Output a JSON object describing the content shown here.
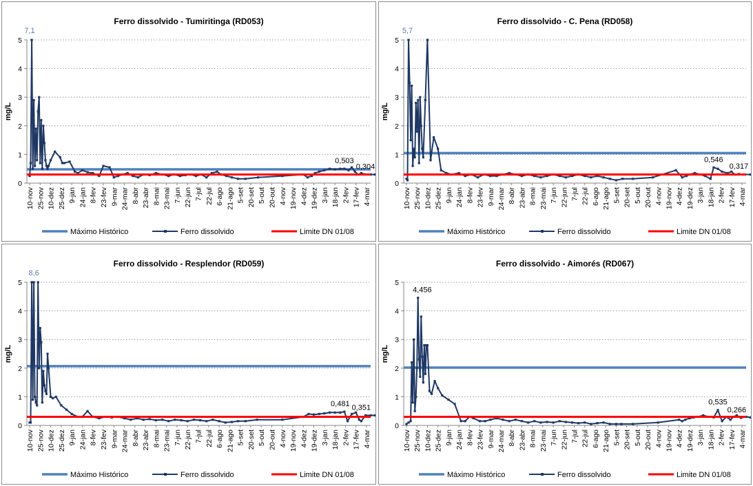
{
  "colors": {
    "maximo": "#4f81bd",
    "ferro": "#1f3864",
    "limite": "#ff0000",
    "grid": "#7f7f7f",
    "max_label": "#5a7aa8"
  },
  "chart_data": [
    {
      "type": "line",
      "title": "Ferro dissolvido - Tumiritinga (RD053)",
      "ylabel": "mg/L",
      "xlabel": "",
      "ylim": [
        0,
        5
      ],
      "yticks": [
        "0",
        "1",
        "2",
        "3",
        "4",
        "5"
      ],
      "grid": true,
      "legend_position": "bottom",
      "x_tick_labels": [
        "10-nov",
        "25-nov",
        "10-dez",
        "25-dez",
        "9-jan",
        "24-jan",
        "8-fev",
        "23-fev",
        "9-mar",
        "24-mar",
        "8-abr",
        "23-abr",
        "8-mai",
        "23-mai",
        "7-jun",
        "22-jun",
        "7-jul",
        "22-jul",
        "6-ago",
        "21-ago",
        "5-set",
        "20-set",
        "5-out",
        "20-out",
        "4-nov",
        "19-nov",
        "4-dez",
        "19-dez",
        "3-jan",
        "18-jan",
        "2-fev",
        "17-fev",
        "4-mar"
      ],
      "legend": [
        "Máximo Histórico",
        "Ferro dissolvido",
        "Limite DN 01/08"
      ],
      "maximo_historico": 0.48,
      "limite": 0.3,
      "labels": [
        {
          "x": 0.0,
          "y": 5,
          "text": "7,1",
          "kind": "max"
        },
        {
          "x": 29.9,
          "y": 0.503,
          "text": "0,503",
          "kind": "data"
        },
        {
          "x": 31.9,
          "y": 0.304,
          "text": "0,304",
          "kind": "data"
        }
      ],
      "series": [
        {
          "name": "Ferro dissolvido",
          "x": [
            0,
            0.1,
            0.2,
            0.3,
            0.4,
            0.5,
            0.6,
            0.7,
            0.8,
            0.9,
            1.0,
            1.1,
            1.2,
            1.3,
            1.4,
            1.5,
            1.6,
            1.7,
            1.8,
            2.0,
            2.4,
            2.9,
            3.1,
            3.3,
            3.8,
            4.3,
            4.6,
            5.0,
            5.5,
            6.0,
            6.6,
            7.0,
            7.6,
            8.0,
            8.4,
            8.8,
            9.3,
            9.8,
            10.3,
            10.8,
            11.4,
            12.0,
            12.6,
            13.2,
            13.7,
            14.3,
            14.8,
            15.3,
            15.8,
            16.3,
            16.8,
            17.3,
            17.8,
            18.2,
            18.7,
            19.2,
            19.8,
            20.5,
            21.7,
            24.0,
            26.0,
            26.4,
            26.8,
            27.1,
            27.5,
            28.0,
            28.5,
            29.0,
            29.5,
            29.9,
            30.3,
            30.6,
            30.9,
            31.2,
            31.5,
            31.9,
            32.4,
            32.8
          ],
          "values": [
            0.25,
            0.7,
            5.0,
            0.5,
            2.9,
            0.6,
            1.9,
            0.8,
            2.5,
            3.0,
            0.7,
            2.2,
            0.5,
            2.0,
            1.4,
            0.8,
            0.6,
            0.5,
            0.6,
            0.8,
            1.1,
            0.9,
            0.7,
            0.7,
            0.75,
            0.4,
            0.35,
            0.45,
            0.38,
            0.35,
            0.25,
            0.6,
            0.55,
            0.2,
            0.25,
            0.3,
            0.35,
            0.25,
            0.2,
            0.3,
            0.28,
            0.35,
            0.3,
            0.25,
            0.3,
            0.25,
            0.28,
            0.3,
            0.25,
            0.3,
            0.2,
            0.35,
            0.4,
            0.3,
            0.25,
            0.2,
            0.15,
            0.15,
            0.2,
            0.25,
            0.3,
            0.2,
            0.25,
            0.35,
            0.4,
            0.45,
            0.5,
            0.48,
            0.5,
            0.503,
            0.45,
            0.55,
            0.4,
            0.3,
            0.35,
            0.304,
            0.3,
            0.3
          ]
        }
      ]
    },
    {
      "type": "line",
      "title": "Ferro dissolvido - C. Pena (RD058)",
      "ylabel": "mg/L",
      "xlabel": "",
      "ylim": [
        0,
        5
      ],
      "yticks": [
        "0",
        "1",
        "2",
        "3",
        "4",
        "5"
      ],
      "grid": true,
      "legend_position": "bottom",
      "x_tick_labels": [
        "10-nov",
        "25-nov",
        "10-dez",
        "25-dez",
        "9-jan",
        "24-jan",
        "8-fev",
        "23-fev",
        "9-mar",
        "24-mar",
        "8-abr",
        "23-abr",
        "8-mai",
        "23-mai",
        "7-jun",
        "22-jun",
        "7-jul",
        "22-jul",
        "6-ago",
        "21-ago",
        "5-set",
        "20-set",
        "5-out",
        "20-out",
        "4-nov",
        "19-nov",
        "4-dez",
        "19-dez",
        "3-jan",
        "18-jan",
        "2-fev",
        "17-fev",
        "4-mar"
      ],
      "legend": [
        "Máximo Histórico",
        "Ferro dissolvido",
        "Limite DN 01/08"
      ],
      "maximo_historico": 1.05,
      "limite": 0.3,
      "labels": [
        {
          "x": 0.1,
          "y": 5,
          "text": "5,7",
          "kind": "max"
        },
        {
          "x": 29.3,
          "y": 0.546,
          "text": "0,546",
          "kind": "data"
        },
        {
          "x": 31.7,
          "y": 0.317,
          "text": "0,317",
          "kind": "data"
        }
      ],
      "series": [
        {
          "name": "Ferro dissolvido",
          "x": [
            0,
            0.1,
            0.2,
            0.3,
            0.4,
            0.5,
            0.6,
            0.7,
            0.8,
            0.9,
            1.0,
            1.1,
            1.2,
            1.3,
            1.4,
            1.5,
            1.6,
            1.8,
            2.0,
            2.3,
            2.6,
            3.0,
            3.3,
            3.8,
            4.3,
            5.0,
            5.6,
            6.2,
            6.8,
            7.4,
            8.0,
            8.6,
            9.2,
            9.8,
            10.4,
            11.0,
            11.6,
            12.2,
            12.8,
            13.4,
            14.0,
            14.6,
            15.2,
            15.8,
            16.4,
            17.0,
            17.6,
            18.2,
            18.8,
            19.4,
            20.0,
            20.6,
            21.6,
            23.5,
            25.7,
            26.3,
            26.7,
            27.0,
            27.5,
            28.0,
            28.5,
            29.0,
            29.3,
            29.7,
            30.1,
            30.6,
            31.0,
            31.3,
            31.7,
            32.2,
            32.8
          ],
          "values": [
            0.15,
            0.1,
            5.0,
            3.5,
            1.5,
            3.4,
            0.6,
            1.2,
            0.9,
            2.8,
            1.8,
            2.9,
            0.7,
            3.0,
            2.0,
            1.2,
            0.9,
            2.9,
            5.0,
            0.8,
            1.6,
            1.2,
            0.45,
            0.35,
            0.3,
            0.35,
            0.25,
            0.3,
            0.2,
            0.3,
            0.25,
            0.25,
            0.3,
            0.35,
            0.3,
            0.25,
            0.3,
            0.25,
            0.2,
            0.25,
            0.3,
            0.25,
            0.2,
            0.25,
            0.3,
            0.25,
            0.2,
            0.25,
            0.2,
            0.15,
            0.1,
            0.15,
            0.15,
            0.2,
            0.45,
            0.2,
            0.25,
            0.3,
            0.35,
            0.3,
            0.25,
            0.15,
            0.546,
            0.5,
            0.4,
            0.35,
            0.4,
            0.3,
            0.317,
            0.3,
            0.3
          ]
        }
      ]
    },
    {
      "type": "line",
      "title": "Ferro dissolvido - Resplendor (RD059)",
      "ylabel": "mg/L",
      "xlabel": "",
      "ylim": [
        0,
        5
      ],
      "yticks": [
        "0",
        "1",
        "2",
        "3",
        "4",
        "5"
      ],
      "grid": true,
      "legend_position": "bottom",
      "x_tick_labels": [
        "10-nov",
        "25-nov",
        "10-dez",
        "25-dez",
        "9-jan",
        "24-jan",
        "8-fev",
        "23-fev",
        "9-mar",
        "24-mar",
        "8-abr",
        "23-abr",
        "8-mai",
        "23-mai",
        "7-jun",
        "22-jun",
        "7-jul",
        "22-jul",
        "6-ago",
        "21-ago",
        "5-set",
        "20-set",
        "5-out",
        "20-out",
        "4-nov",
        "19-nov",
        "4-dez",
        "19-dez",
        "3-jan",
        "18-jan",
        "2-fev",
        "17-fev",
        "4-mar"
      ],
      "legend": [
        "Máximo Histórico",
        "Ferro dissolvido",
        "Limite DN 01/08"
      ],
      "maximo_historico": 2.07,
      "limite": 0.3,
      "labels": [
        {
          "x": 0.4,
          "y": 5,
          "text": "8,6",
          "kind": "max"
        },
        {
          "x": 29.5,
          "y": 0.481,
          "text": "0,481",
          "kind": "data"
        },
        {
          "x": 31.5,
          "y": 0.351,
          "text": "0,351",
          "kind": "data"
        }
      ],
      "series": [
        {
          "name": "Ferro dissolvido",
          "x": [
            0,
            0.1,
            0.2,
            0.3,
            0.4,
            0.5,
            0.6,
            0.7,
            0.8,
            0.9,
            1.0,
            1.1,
            1.2,
            1.3,
            1.4,
            1.5,
            1.6,
            1.7,
            1.8,
            2.0,
            2.2,
            2.5,
            3.0,
            3.5,
            4.0,
            4.6,
            5.0,
            5.5,
            6.0,
            6.6,
            7.2,
            7.8,
            8.4,
            9.0,
            9.6,
            10.2,
            10.8,
            11.4,
            12.0,
            12.6,
            13.2,
            13.8,
            14.4,
            15.0,
            15.6,
            16.2,
            16.8,
            17.4,
            18.0,
            18.6,
            19.2,
            19.8,
            20.5,
            21.6,
            24.0,
            26.0,
            26.5,
            27.0,
            27.5,
            28.0,
            28.5,
            29.0,
            29.5,
            29.9,
            30.2,
            30.6,
            31.0,
            31.3,
            31.5,
            31.9,
            32.4,
            32.8
          ],
          "values": [
            0.1,
            0.1,
            5.0,
            0.9,
            5.0,
            1.0,
            0.8,
            0.7,
            5.0,
            2.0,
            3.4,
            2.9,
            0.8,
            1.9,
            1.4,
            1.2,
            1.1,
            2.5,
            2.0,
            1.0,
            0.95,
            1.0,
            0.7,
            0.55,
            0.4,
            0.3,
            0.3,
            0.5,
            0.3,
            0.25,
            0.3,
            0.28,
            0.3,
            0.25,
            0.2,
            0.25,
            0.2,
            0.22,
            0.18,
            0.2,
            0.15,
            0.2,
            0.18,
            0.15,
            0.2,
            0.18,
            0.15,
            0.2,
            0.15,
            0.1,
            0.12,
            0.15,
            0.15,
            0.2,
            0.2,
            0.3,
            0.4,
            0.38,
            0.4,
            0.42,
            0.45,
            0.45,
            0.45,
            0.481,
            0.15,
            0.4,
            0.45,
            0.2,
            0.15,
            0.351,
            0.35,
            0.35
          ]
        }
      ]
    },
    {
      "type": "line",
      "title": "Ferro dissolvido - Aimorés (RD067)",
      "ylabel": "mg/L",
      "xlabel": "",
      "ylim": [
        0,
        5
      ],
      "yticks": [
        "0",
        "1",
        "2",
        "3",
        "4",
        "5"
      ],
      "grid": true,
      "legend_position": "bottom",
      "x_tick_labels": [
        "10-nov",
        "25-nov",
        "10-dez",
        "25-dez",
        "9-jan",
        "24-jan",
        "8-fev",
        "23-fev",
        "9-mar",
        "24-mar",
        "8-abr",
        "23-abr",
        "8-mai",
        "23-mai",
        "7-jun",
        "22-jun",
        "7-jul",
        "22-jul",
        "6-ago",
        "21-ago",
        "5-set",
        "20-set",
        "5-out",
        "20-out",
        "4-nov",
        "19-nov",
        "4-dez",
        "19-dez",
        "3-jan",
        "18-jan",
        "2-fev",
        "17-fev",
        "4-mar"
      ],
      "legend": [
        "Máximo Histórico",
        "Ferro dissolvido",
        "Limite DN 01/08"
      ],
      "maximo_historico": 2.02,
      "limite": 0.3,
      "labels": [
        {
          "x": 1.5,
          "y": 4.456,
          "text": "4,456",
          "kind": "data"
        },
        {
          "x": 29.7,
          "y": 0.535,
          "text": "0,535",
          "kind": "data"
        },
        {
          "x": 31.5,
          "y": 0.266,
          "text": "0,266",
          "kind": "data"
        }
      ],
      "series": [
        {
          "name": "Ferro dissolvido",
          "x": [
            0,
            0.2,
            0.4,
            0.5,
            0.6,
            0.7,
            0.8,
            0.9,
            1.0,
            1.1,
            1.2,
            1.3,
            1.4,
            1.5,
            1.6,
            1.7,
            1.8,
            1.9,
            2.0,
            2.2,
            2.4,
            2.7,
            3.0,
            3.4,
            4.0,
            4.6,
            5.2,
            5.6,
            6.0,
            6.4,
            7.0,
            7.5,
            8.0,
            8.6,
            9.2,
            9.8,
            10.4,
            11.0,
            11.6,
            12.2,
            12.8,
            13.4,
            14.0,
            14.6,
            15.2,
            15.8,
            16.4,
            17.0,
            17.6,
            18.2,
            18.8,
            19.4,
            20.0,
            20.5,
            21.6,
            24.0,
            26.0,
            26.3,
            26.6,
            27.0,
            27.4,
            27.8,
            28.3,
            28.8,
            29.3,
            29.7,
            30.1,
            30.5,
            30.9,
            31.2,
            31.5,
            31.9,
            32.4,
            32.8
          ],
          "values": [
            0.05,
            0.1,
            0.15,
            2.2,
            0.8,
            3.0,
            0.5,
            1.0,
            2.0,
            4.456,
            2.3,
            1.7,
            3.8,
            2.4,
            1.5,
            2.8,
            1.8,
            2.8,
            2.8,
            1.2,
            1.1,
            1.55,
            1.3,
            1.05,
            0.9,
            0.75,
            0.15,
            0.15,
            0.3,
            0.25,
            0.15,
            0.15,
            0.2,
            0.25,
            0.2,
            0.15,
            0.2,
            0.15,
            0.1,
            0.15,
            0.1,
            0.12,
            0.1,
            0.15,
            0.12,
            0.1,
            0.08,
            0.1,
            0.05,
            0.08,
            0.1,
            0.05,
            0.05,
            0.05,
            0.05,
            0.1,
            0.2,
            0.15,
            0.2,
            0.25,
            0.28,
            0.3,
            0.35,
            0.3,
            0.28,
            0.535,
            0.15,
            0.3,
            0.2,
            0.3,
            0.35,
            0.266,
            0.3,
            0.28
          ]
        }
      ]
    }
  ]
}
